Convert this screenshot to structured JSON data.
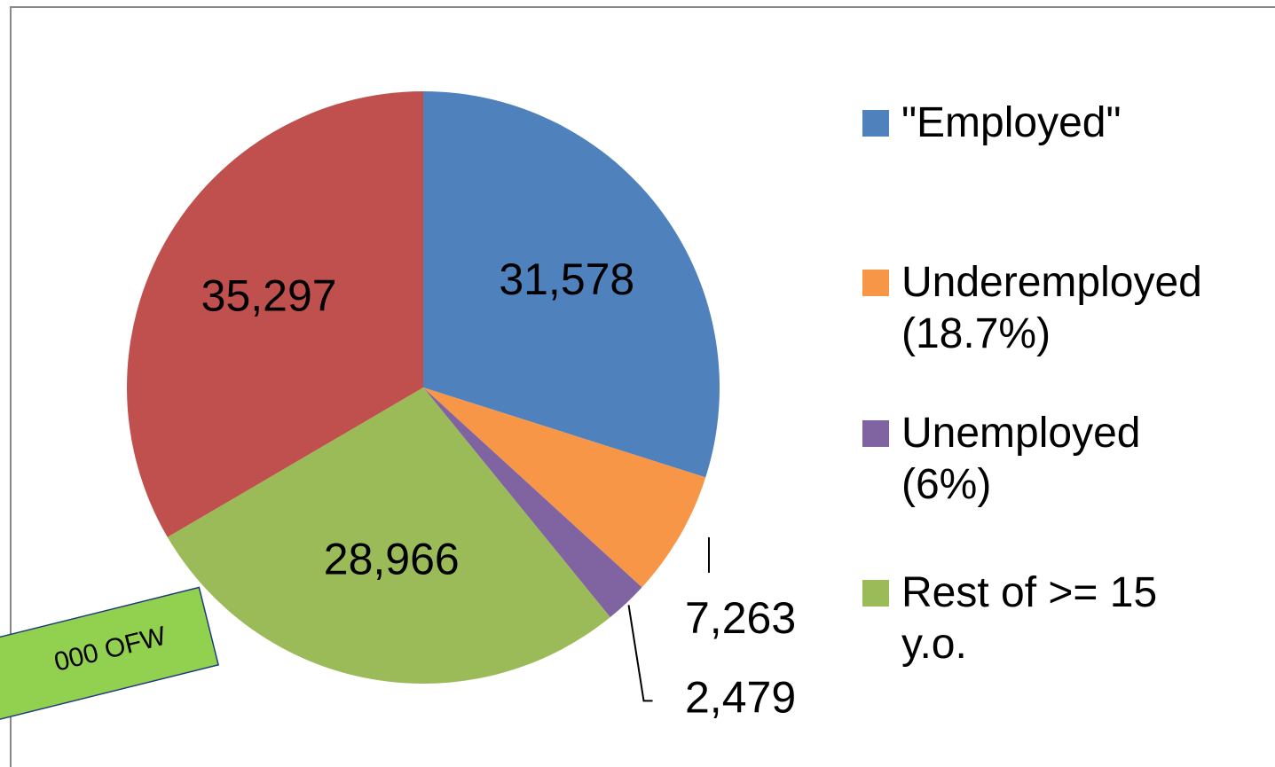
{
  "chart_data": {
    "type": "pie",
    "categories": [
      "\"Employed\"",
      "Underemployed (18.7%)",
      "Unemployed (6%)",
      "Rest of >= 15 y.o.",
      null
    ],
    "values": [
      31578,
      7263,
      2479,
      28966,
      35297
    ],
    "value_labels": [
      "31,578",
      "7,263",
      "2,479",
      "28,966",
      "35,297"
    ],
    "colors": [
      "#4f81bd",
      "#f79646",
      "#8064a2",
      "#9bbb59",
      "#c0504d"
    ],
    "legend": "right",
    "annotation": "000 OFW"
  }
}
